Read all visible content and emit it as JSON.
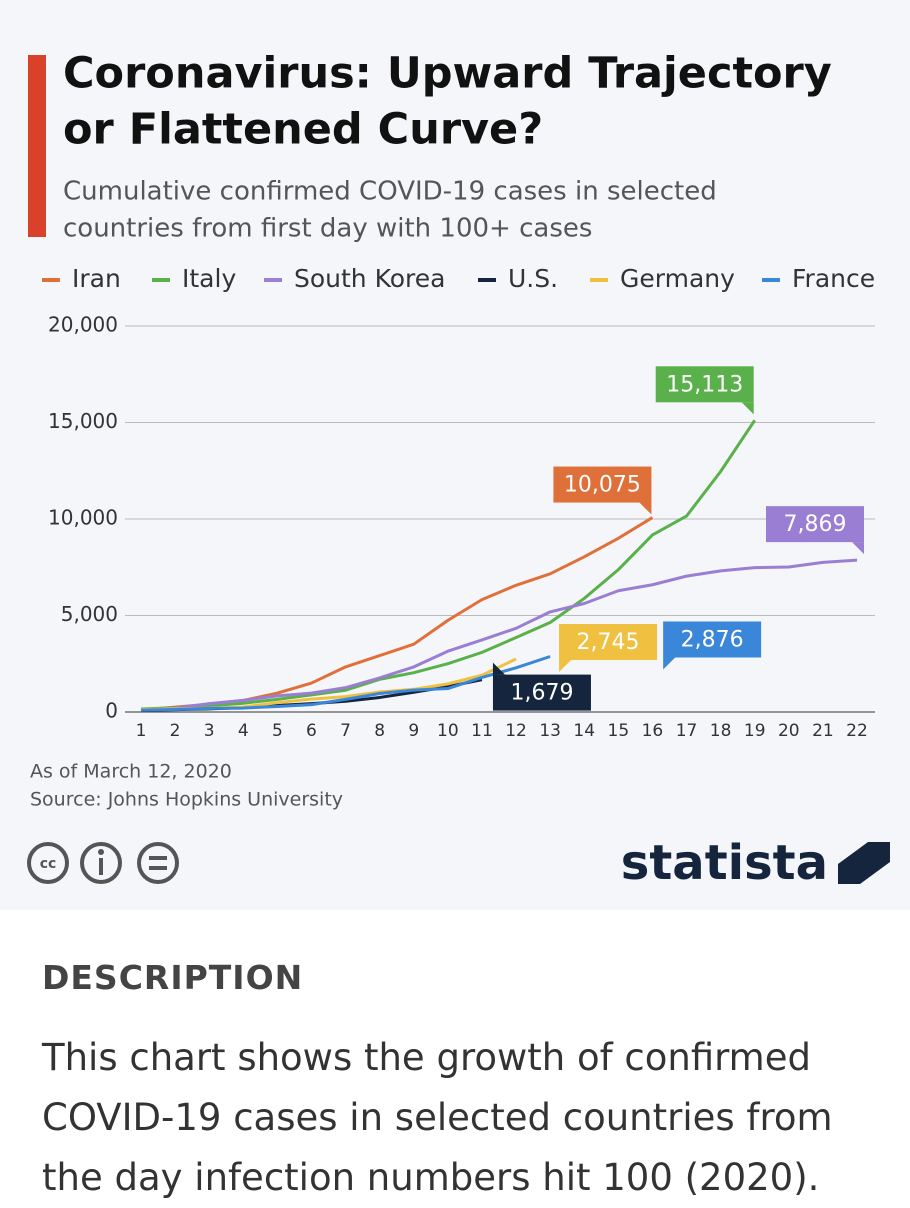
{
  "chart_data": {
    "type": "line",
    "title": [
      "Coronavirus: Upward Trajectory",
      "or Flattened Curve?"
    ],
    "subtitle": [
      "Cumulative confirmed COVID-19 cases in selected",
      "countries from first day with 100+ cases"
    ],
    "x": [
      1,
      2,
      3,
      4,
      5,
      6,
      7,
      8,
      9,
      10,
      11,
      12,
      13,
      14,
      15,
      16,
      17,
      18,
      19,
      20,
      21,
      22
    ],
    "xlim": [
      1,
      22
    ],
    "xticks": [
      1,
      2,
      3,
      4,
      5,
      6,
      7,
      8,
      9,
      10,
      11,
      12,
      13,
      14,
      15,
      16,
      17,
      18,
      19,
      20,
      21,
      22
    ],
    "ylim": [
      0,
      20000
    ],
    "yticks": [
      0,
      {
        "value": 5000,
        "label": "5,000"
      },
      {
        "value": 10000,
        "label": "10,000"
      },
      {
        "value": 15000,
        "label": "15,000"
      },
      {
        "value": 20000,
        "label": "20,000"
      }
    ],
    "grid": true,
    "legend": "top",
    "series": [
      {
        "name": "Iran",
        "color": "#e0703a",
        "values": [
          100,
          250,
          400,
          600,
          978,
          1500,
          2336,
          2922,
          3513,
          4747,
          5823,
          6566,
          7161,
          8042,
          9000,
          10075,
          null,
          null,
          null,
          null,
          null,
          null
        ],
        "value_labels": [
          null,
          null,
          null,
          null,
          null,
          null,
          null,
          null,
          null,
          null,
          null,
          null,
          null,
          null,
          null,
          "10,075",
          null,
          null,
          null,
          null,
          null,
          null
        ]
      },
      {
        "name": "Italy",
        "color": "#5ab04a",
        "values": [
          155,
          229,
          322,
          453,
          655,
          888,
          1128,
          1694,
          2036,
          2502,
          3089,
          3858,
          4636,
          5883,
          7375,
          9172,
          10149,
          12462,
          15113,
          null,
          null,
          null
        ],
        "value_labels": [
          null,
          null,
          null,
          null,
          null,
          null,
          null,
          null,
          null,
          null,
          null,
          null,
          null,
          null,
          null,
          null,
          null,
          null,
          "15,113",
          null,
          null,
          null
        ]
      },
      {
        "name": "South Korea",
        "color": "#9a7ed4",
        "values": [
          104,
          204,
          433,
          602,
          833,
          977,
          1261,
          1766,
          2337,
          3150,
          3736,
          4335,
          5186,
          5621,
          6284,
          6593,
          7041,
          7314,
          7478,
          7513,
          7755,
          7869
        ],
        "value_labels": [
          null,
          null,
          null,
          null,
          null,
          null,
          null,
          null,
          null,
          null,
          null,
          null,
          null,
          null,
          null,
          null,
          null,
          null,
          null,
          null,
          null,
          "7,869"
        ]
      },
      {
        "name": "U.S.",
        "color": "#14253d",
        "values": [
          103,
          125,
          159,
          233,
          338,
          433,
          554,
          754,
          1025,
          1312,
          1679,
          null,
          null,
          null,
          null,
          null,
          null,
          null,
          null,
          null,
          null,
          null
        ],
        "value_labels": [
          null,
          null,
          null,
          null,
          null,
          null,
          null,
          null,
          null,
          null,
          "1,679",
          null,
          null,
          null,
          null,
          null,
          null,
          null,
          null,
          null,
          null,
          null
        ]
      },
      {
        "name": "Germany",
        "color": "#f0c040",
        "values": [
          130,
          159,
          196,
          262,
          482,
          670,
          799,
          1040,
          1176,
          1457,
          1908,
          2745,
          null,
          null,
          null,
          null,
          null,
          null,
          null,
          null,
          null,
          null
        ],
        "value_labels": [
          null,
          null,
          null,
          null,
          null,
          null,
          null,
          null,
          null,
          null,
          null,
          "2,745",
          null,
          null,
          null,
          null,
          null,
          null,
          null,
          null,
          null,
          null
        ]
      },
      {
        "name": "France",
        "color": "#3a86d8",
        "values": [
          100,
          130,
          191,
          204,
          288,
          380,
          656,
          957,
          1134,
          1217,
          1792,
          2290,
          2876,
          null,
          null,
          null,
          null,
          null,
          null,
          null,
          null,
          null
        ],
        "value_labels": [
          null,
          null,
          null,
          null,
          null,
          null,
          null,
          null,
          null,
          null,
          null,
          null,
          "2,876",
          null,
          null,
          null,
          null,
          null,
          null,
          null,
          null,
          null
        ]
      }
    ],
    "note": "As of March 12, 2020",
    "source": "Source: Johns Hopkins University"
  },
  "brand": "statista",
  "description": {
    "heading": "DESCRIPTION",
    "text": "This chart shows the growth of confirmed COVID-19 cases in selected countries from the day infection numbers hit 100 (2020)."
  }
}
